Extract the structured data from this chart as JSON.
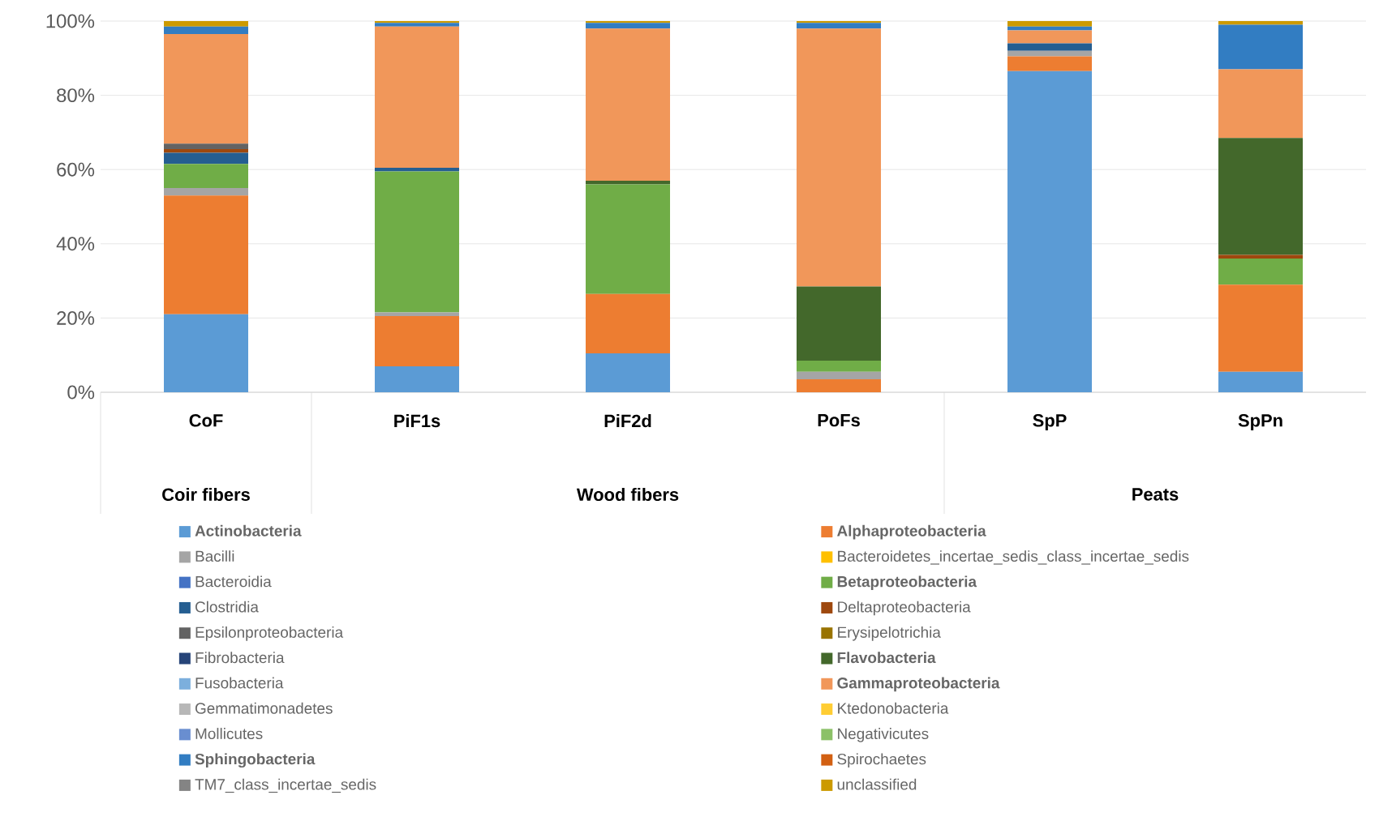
{
  "chart_data": {
    "type": "bar",
    "stacked": true,
    "categories": [
      "CoF",
      "PiF1s",
      "PiF2d",
      "PoFs",
      "SpP",
      "SpPn"
    ],
    "annotations": [
      "Coir fibers",
      "Wood fibers",
      "Peats"
    ],
    "ylim": [
      0,
      100
    ],
    "yticks": [
      {
        "value": 0,
        "label": "0%"
      },
      {
        "value": 20,
        "label": "20%"
      },
      {
        "value": 40,
        "label": "40%"
      },
      {
        "value": 60,
        "label": "60%"
      },
      {
        "value": 80,
        "label": "80%"
      },
      {
        "value": 100,
        "label": "100%"
      }
    ],
    "grid": "y",
    "legend": "bottom",
    "series": [
      {
        "name": "**Actinobacteria**",
        "color": "#5b9bd5",
        "values": [
          21,
          7,
          10.5,
          0,
          86.5,
          5.5
        ]
      },
      {
        "name": "**Alphaproteobacteria**",
        "color": "#ed7d31",
        "values": [
          32,
          13.5,
          16,
          3.5,
          4,
          23.5
        ]
      },
      {
        "name": "Bacilli",
        "color": "#a5a5a5",
        "values": [
          2,
          1,
          0,
          2,
          1.5,
          0
        ]
      },
      {
        "name": "Bacteroidetes_incertae_sedis_class_incertae_sedis",
        "color": "#ffc000",
        "values": [
          0,
          0,
          0,
          0,
          0,
          0
        ]
      },
      {
        "name": "Bacteroidia",
        "color": "#4472c4",
        "values": [
          0,
          0,
          0,
          0,
          0,
          0
        ]
      },
      {
        "name": "**Betaproteobacteria**",
        "color": "#70ad47",
        "values": [
          6.5,
          38,
          29.5,
          3,
          0,
          7
        ]
      },
      {
        "name": "Clostridia",
        "color": "#255e91",
        "values": [
          3,
          1,
          0,
          0,
          2,
          0
        ]
      },
      {
        "name": "Deltaproteobacteria",
        "color": "#9e480e",
        "values": [
          1,
          0,
          0,
          0,
          0,
          1
        ]
      },
      {
        "name": "Epsilonproteobacteria",
        "color": "#636363",
        "values": [
          1.5,
          0,
          0,
          0,
          0,
          0
        ]
      },
      {
        "name": "Erysipelotrichia",
        "color": "#997300",
        "values": [
          0,
          0,
          0,
          0,
          0,
          0
        ]
      },
      {
        "name": "Fibrobacteria",
        "color": "#264478",
        "values": [
          0,
          0,
          0,
          0,
          0,
          0
        ]
      },
      {
        "name": "**Flavobacteria**",
        "color": "#43682b",
        "values": [
          0,
          0,
          1,
          20,
          0,
          31.5
        ]
      },
      {
        "name": "Fusobacteria",
        "color": "#7cafdd",
        "values": [
          0,
          0,
          0,
          0,
          0,
          0
        ]
      },
      {
        "name": "**Gammaproteobacteria**",
        "color": "#f1975a",
        "values": [
          29.5,
          38,
          41,
          69.5,
          3.5,
          18.5
        ]
      },
      {
        "name": "Gemmatimonadetes",
        "color": "#b7b7b7",
        "values": [
          0,
          0,
          0,
          0,
          0,
          0
        ]
      },
      {
        "name": "Ktedonobacteria",
        "color": "#ffcd33",
        "values": [
          0,
          0,
          0,
          0,
          0,
          0
        ]
      },
      {
        "name": "Mollicutes",
        "color": "#698ed0",
        "values": [
          0,
          0,
          0,
          0,
          0,
          0
        ]
      },
      {
        "name": "Negativicutes",
        "color": "#8cc168",
        "values": [
          0,
          0,
          0,
          0,
          0,
          0
        ]
      },
      {
        "name": "**Sphingobacteria**",
        "color": "#327dc2",
        "values": [
          2,
          1,
          1.5,
          1.5,
          1,
          12
        ]
      },
      {
        "name": "Spirochaetes",
        "color": "#d26012",
        "values": [
          0,
          0,
          0,
          0,
          0,
          0
        ]
      },
      {
        "name": "TM7_class_incertae_sedis",
        "color": "#848484",
        "values": [
          0,
          0,
          0,
          0,
          0,
          0
        ]
      },
      {
        "name": "unclassified",
        "color": "#cc9a00",
        "values": [
          1.5,
          0.5,
          0.5,
          0.5,
          1.5,
          1
        ]
      }
    ]
  }
}
